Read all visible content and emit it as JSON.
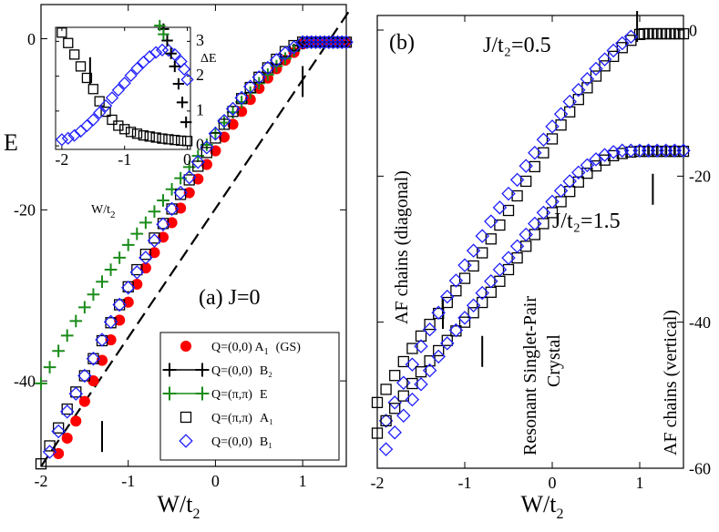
{
  "chart_data": [
    {
      "panel": "a",
      "type": "scatter",
      "annotation": "(a)  J=0",
      "xlabel": "W/t",
      "xlabel_sub": "2",
      "ylabel": "E",
      "xlim": [
        -2.0,
        1.5
      ],
      "ylim": [
        -50,
        4
      ],
      "xticks": [
        -2,
        -1,
        0,
        1
      ],
      "xtick_labels": [
        "-2",
        "-1",
        "0",
        "1"
      ],
      "yticks": [
        -40,
        -20,
        0
      ],
      "ytick_labels": [
        "-40",
        "-20",
        "0"
      ],
      "dashed_line": {
        "x": [
          -2.0,
          1.55
        ],
        "y": [
          -50.0,
          3.5
        ]
      },
      "markers": [
        {
          "x": -1.3,
          "y": -46.5
        },
        {
          "x": 1.0,
          "y": -5.0
        }
      ],
      "series": [
        {
          "name": "Q=(0,0) A1 (GS)",
          "legend_label": "Q=(0,0) A",
          "legend_sub": "1",
          "legend_suffix": "(GS)",
          "marker": "dot",
          "color": "#ff0000",
          "x": [
            -1.8,
            -1.7,
            -1.6,
            -1.5,
            -1.4,
            -1.3,
            -1.2,
            -1.1,
            -1.0,
            -0.9,
            -0.8,
            -0.7,
            -0.6,
            -0.5,
            -0.4,
            -0.3,
            -0.2,
            -0.1,
            0.0,
            0.1,
            0.2,
            0.3,
            0.4,
            0.5,
            0.6,
            0.7,
            0.8,
            0.9,
            1.0,
            1.1,
            1.2,
            1.3,
            1.4,
            1.5
          ],
          "y": [
            -48.5,
            -46.7,
            -44.7,
            -42.4,
            -40.0,
            -37.6,
            -35.2,
            -32.9,
            -30.8,
            -28.7,
            -26.8,
            -25.0,
            -23.2,
            -21.5,
            -19.8,
            -18.0,
            -16.4,
            -14.7,
            -13.1,
            -11.5,
            -10.0,
            -8.5,
            -7.1,
            -5.8,
            -4.6,
            -3.5,
            -2.5,
            -1.6,
            -0.6,
            -0.4,
            -0.4,
            -0.4,
            -0.4,
            -0.4
          ]
        },
        {
          "name": "Q=(0,0) B2",
          "legend_label": "Q=(0,0)",
          "legend_sub": "",
          "legend_suffix": "B₂",
          "marker": "plus",
          "color": "#000000",
          "x": [
            0.9,
            0.95,
            1.0,
            1.05,
            1.1,
            1.15,
            1.2,
            1.25,
            1.3,
            1.35,
            1.4,
            1.45,
            1.5
          ],
          "y": [
            -1.3,
            -0.8,
            -0.5,
            -0.4,
            -0.4,
            -0.4,
            -0.4,
            -0.4,
            -0.4,
            -0.4,
            -0.4,
            -0.4,
            -0.4
          ]
        },
        {
          "name": "Q=(π,π) E",
          "legend_label": "Q=(π,π)",
          "legend_sub": "",
          "legend_suffix": "E",
          "marker": "plus",
          "color": "#1a8c1a",
          "x": [
            -2.0,
            -1.9,
            -1.8,
            -1.7,
            -1.6,
            -1.5,
            -1.4,
            -1.3,
            -1.2,
            -1.1,
            -1.0,
            -0.9,
            -0.8,
            -0.7,
            -0.6,
            -0.5,
            -0.4,
            -0.3,
            -0.2,
            -0.1,
            0.0,
            0.1,
            0.2,
            0.3,
            0.4,
            0.5,
            0.6,
            0.7,
            0.8,
            0.9
          ],
          "y": [
            -40.3,
            -38.4,
            -36.5,
            -34.7,
            -33.0,
            -31.4,
            -29.9,
            -28.4,
            -27.0,
            -25.6,
            -24.1,
            -22.8,
            -21.5,
            -20.2,
            -18.9,
            -17.6,
            -16.3,
            -15.0,
            -13.7,
            -12.4,
            -11.0,
            -9.8,
            -8.6,
            -7.4,
            -6.3,
            -5.2,
            -4.2,
            -3.2,
            -2.3,
            -1.4
          ]
        },
        {
          "name": "Q=(π,π) A1",
          "legend_label": "Q=(π,π)",
          "legend_sub": "",
          "legend_suffix": "A₁",
          "marker": "square",
          "color": "#000000",
          "x": [
            -2.0,
            -1.9,
            -1.8,
            -1.7,
            -1.6,
            -1.5,
            -1.4,
            -1.3,
            -1.2,
            -1.1,
            -1.0,
            -0.9,
            -0.8,
            -0.7,
            -0.6,
            -0.5,
            -0.4,
            -0.3,
            -0.2,
            -0.1,
            0.0,
            0.1,
            0.2,
            0.3,
            0.4,
            0.5,
            0.6,
            0.7,
            0.8,
            0.9,
            1.0,
            1.05,
            1.1,
            1.15,
            1.2,
            1.25,
            1.3,
            1.35,
            1.4,
            1.45,
            1.5
          ],
          "y": [
            -49.7,
            -47.6,
            -45.5,
            -43.3,
            -41.3,
            -39.4,
            -37.4,
            -35.3,
            -33.2,
            -31.1,
            -29.0,
            -27.0,
            -25.2,
            -23.3,
            -21.6,
            -19.9,
            -18.2,
            -16.5,
            -14.9,
            -13.3,
            -11.6,
            -10.0,
            -8.5,
            -7.0,
            -5.7,
            -4.5,
            -3.4,
            -2.4,
            -1.5,
            -0.8,
            -0.4,
            -0.4,
            -0.4,
            -0.4,
            -0.4,
            -0.4,
            -0.4,
            -0.4,
            -0.4,
            -0.4,
            -0.4
          ]
        },
        {
          "name": "Q=(0,0) B1",
          "legend_label": "Q=(0,0)",
          "legend_sub": "",
          "legend_suffix": "B₁",
          "marker": "diamond",
          "color": "#1f1fff",
          "x": [
            -1.9,
            -1.8,
            -1.7,
            -1.6,
            -1.5,
            -1.4,
            -1.3,
            -1.2,
            -1.1,
            -1.0,
            -0.9,
            -0.8,
            -0.7,
            -0.6,
            -0.5,
            -0.4,
            -0.3,
            -0.2,
            -0.1,
            0.0,
            0.1,
            0.2,
            0.3,
            0.4,
            0.5,
            0.6,
            0.7,
            0.8,
            0.9,
            1.0,
            1.05,
            1.1,
            1.15,
            1.2,
            1.25,
            1.3,
            1.35,
            1.4,
            1.45,
            1.5
          ],
          "y": [
            -48.3,
            -45.9,
            -43.6,
            -41.5,
            -39.4,
            -37.4,
            -35.2,
            -33.1,
            -31.1,
            -29.1,
            -27.3,
            -25.6,
            -23.6,
            -21.7,
            -19.9,
            -18.0,
            -16.2,
            -14.4,
            -12.7,
            -11.1,
            -9.6,
            -8.2,
            -6.9,
            -5.6,
            -4.5,
            -3.4,
            -2.5,
            -1.7,
            -1.0,
            -0.4,
            -0.4,
            -0.4,
            -0.4,
            -0.4,
            -0.4,
            -0.4,
            -0.4,
            -0.4,
            -0.4,
            -0.4
          ]
        }
      ]
    },
    {
      "panel": "a-inset",
      "type": "scatter",
      "xlabel": "W/t",
      "xlabel_sub": "2",
      "ylabel": "ΔE",
      "xlim": [
        -2.1,
        0.05
      ],
      "ylim": [
        -0.1,
        3.4
      ],
      "xticks": [
        -2,
        -1,
        0
      ],
      "xtick_labels": [
        "-2",
        "-1",
        "0"
      ],
      "yticks": [
        0,
        1,
        2,
        3
      ],
      "ytick_labels": [
        "0",
        "1",
        "2",
        "3"
      ],
      "markers": [
        {
          "x": -1.55,
          "y": 2.15
        }
      ],
      "series": [
        {
          "name": "Q=(π,π) A1",
          "marker": "square",
          "color": "#000000",
          "x": [
            -2.0,
            -1.9,
            -1.8,
            -1.7,
            -1.6,
            -1.5,
            -1.4,
            -1.3,
            -1.2,
            -1.1,
            -1.0,
            -0.9,
            -0.8,
            -0.7,
            -0.6,
            -0.5,
            -0.4,
            -0.3,
            -0.2,
            -0.1,
            0.0
          ],
          "y": [
            3.25,
            2.95,
            2.62,
            2.28,
            1.95,
            1.63,
            1.28,
            0.98,
            0.75,
            0.58,
            0.48,
            0.4,
            0.35,
            0.3,
            0.27,
            0.24,
            0.21,
            0.19,
            0.17,
            0.15,
            0.14
          ]
        },
        {
          "name": "Q=(0,0) B1",
          "marker": "diamond",
          "color": "#1f1fff",
          "x": [
            -2.0,
            -1.9,
            -1.8,
            -1.7,
            -1.6,
            -1.5,
            -1.4,
            -1.3,
            -1.2,
            -1.1,
            -1.0,
            -0.9,
            -0.8,
            -0.7,
            -0.6,
            -0.5,
            -0.4,
            -0.3,
            -0.2,
            -0.1,
            0.0,
            -0.05
          ],
          "y": [
            0.18,
            0.22,
            0.3,
            0.42,
            0.58,
            0.75,
            0.95,
            1.15,
            1.38,
            1.6,
            1.8,
            2.02,
            2.22,
            2.4,
            2.56,
            2.68,
            2.75,
            2.74,
            2.62,
            2.42,
            1.9,
            2.2
          ]
        },
        {
          "name": "Q=(0,0) B2",
          "marker": "plus",
          "color": "#000000",
          "x": [
            -0.38,
            -0.32,
            -0.26,
            -0.2,
            -0.14,
            -0.08,
            -0.02
          ],
          "y": [
            3.35,
            3.02,
            2.65,
            2.28,
            1.78,
            1.25,
            0.68
          ]
        },
        {
          "name": "Q=(π,π) E",
          "marker": "plus",
          "color": "#1a8c1a",
          "x": [
            -0.44,
            -0.38
          ],
          "y": [
            3.45,
            3.2
          ]
        }
      ]
    },
    {
      "panel": "b",
      "type": "scatter",
      "annotations": [
        "(b)",
        "J/t₂=0.5",
        "J/t₂=1.5",
        "AF chains (diagonal)",
        "Resonant Singlet-Pair",
        "Crystal",
        "AF chains (vertical)"
      ],
      "xlabel": "W/t",
      "xlabel_sub": "2",
      "xlim": [
        -2.0,
        1.5
      ],
      "ylim": [
        -60,
        2
      ],
      "xticks": [
        -2,
        -1,
        0,
        1
      ],
      "xtick_labels": [
        "-2",
        "-1",
        "0",
        "1"
      ],
      "yticks": [
        -60,
        -40,
        -20,
        0
      ],
      "ytick_labels": [
        "-60",
        "-40",
        "-20",
        "0"
      ],
      "markers": [
        {
          "x": 0.97,
          "y": 0.5
        },
        {
          "x": 1.15,
          "y": -21.8
        },
        {
          "x": -1.25,
          "y": -38.8
        },
        {
          "x": -0.8,
          "y": -44.0
        }
      ],
      "series": [
        {
          "name": "J/t2=0.5 Q=(π,π) A1",
          "marker": "square",
          "color": "#000000",
          "x": [
            -2.0,
            -1.9,
            -1.8,
            -1.7,
            -1.6,
            -1.5,
            -1.4,
            -1.3,
            -1.2,
            -1.1,
            -1.0,
            -0.9,
            -0.8,
            -0.7,
            -0.6,
            -0.5,
            -0.4,
            -0.3,
            -0.2,
            -0.1,
            0.0,
            0.1,
            0.2,
            0.3,
            0.4,
            0.5,
            0.6,
            0.7,
            0.8,
            0.9,
            1.0,
            1.05,
            1.1,
            1.15,
            1.2,
            1.25,
            1.3,
            1.35,
            1.4,
            1.45,
            1.5
          ],
          "y": [
            -51.0,
            -49.2,
            -47.3,
            -45.4,
            -43.6,
            -41.9,
            -40.3,
            -38.8,
            -37.3,
            -35.7,
            -34.0,
            -32.3,
            -30.5,
            -28.6,
            -26.7,
            -24.7,
            -22.7,
            -20.7,
            -18.7,
            -16.8,
            -14.9,
            -13.0,
            -11.2,
            -9.5,
            -7.9,
            -6.3,
            -4.9,
            -3.6,
            -2.4,
            -1.4,
            -0.6,
            -0.5,
            -0.5,
            -0.5,
            -0.5,
            -0.5,
            -0.5,
            -0.5,
            -0.5,
            -0.5,
            -0.5
          ]
        },
        {
          "name": "J/t2=0.5 Q=(0,0) B1",
          "marker": "diamond",
          "color": "#1f1fff",
          "x": [
            -1.9,
            -1.8,
            -1.7,
            -1.6,
            -1.5,
            -1.4,
            -1.3,
            -1.2,
            -1.1,
            -1.0,
            -0.9,
            -0.8,
            -0.7,
            -0.6,
            -0.5,
            -0.4,
            -0.3,
            -0.2,
            -0.1,
            0.0,
            0.1,
            0.2,
            0.3,
            0.4,
            0.5,
            0.6,
            0.7,
            0.8,
            0.9
          ],
          "y": [
            -53.5,
            -51.0,
            -48.3,
            -45.8,
            -43.3,
            -41.0,
            -38.7,
            -36.5,
            -34.3,
            -32.2,
            -30.2,
            -28.2,
            -26.2,
            -24.3,
            -22.4,
            -20.5,
            -18.6,
            -16.8,
            -15.0,
            -13.2,
            -11.5,
            -9.8,
            -8.2,
            -6.7,
            -5.3,
            -4.0,
            -2.8,
            -1.8,
            -0.9
          ]
        },
        {
          "name": "J/t2=1.5 Q=(π,π) A1",
          "marker": "square",
          "color": "#000000",
          "x": [
            -2.0,
            -1.9,
            -1.8,
            -1.7,
            -1.6,
            -1.5,
            -1.4,
            -1.3,
            -1.2,
            -1.1,
            -1.0,
            -0.9,
            -0.8,
            -0.7,
            -0.6,
            -0.5,
            -0.4,
            -0.3,
            -0.2,
            -0.1,
            0.0,
            0.1,
            0.2,
            0.3,
            0.4,
            0.5,
            0.6,
            0.7,
            0.8,
            0.9,
            1.0,
            1.05,
            1.1,
            1.15,
            1.2,
            1.25,
            1.3,
            1.35,
            1.4,
            1.45,
            1.5
          ],
          "y": [
            -55.2,
            -53.5,
            -51.8,
            -50.1,
            -48.4,
            -46.8,
            -45.3,
            -43.9,
            -42.5,
            -41.2,
            -40.0,
            -38.7,
            -37.3,
            -35.9,
            -34.4,
            -32.8,
            -31.2,
            -29.6,
            -28.0,
            -26.5,
            -25.0,
            -23.5,
            -22.1,
            -20.8,
            -19.6,
            -18.6,
            -17.8,
            -17.2,
            -16.9,
            -16.7,
            -16.6,
            -16.6,
            -16.6,
            -16.6,
            -16.6,
            -16.6,
            -16.6,
            -16.6,
            -16.6,
            -16.6,
            -16.6
          ]
        },
        {
          "name": "J/t2=1.5 Q=(0,0) B1",
          "marker": "diamond",
          "color": "#1f1fff",
          "x": [
            -1.9,
            -1.8,
            -1.7,
            -1.6,
            -1.5,
            -1.4,
            -1.3,
            -1.2,
            -1.1,
            -1.0,
            -0.9,
            -0.8,
            -0.7,
            -0.6,
            -0.5,
            -0.4,
            -0.3,
            -0.2,
            -0.1,
            0.0,
            0.1,
            0.2,
            0.3,
            0.4,
            0.5,
            0.6,
            0.7,
            0.8,
            0.9,
            1.0,
            1.1,
            1.2,
            1.3,
            1.4,
            1.5
          ],
          "y": [
            -57.4,
            -55.1,
            -52.8,
            -50.6,
            -48.5,
            -46.6,
            -44.7,
            -42.9,
            -41.1,
            -39.4,
            -37.7,
            -36.0,
            -34.4,
            -32.8,
            -31.2,
            -29.6,
            -28.0,
            -26.5,
            -25.0,
            -23.5,
            -22.0,
            -20.7,
            -19.5,
            -18.5,
            -17.7,
            -17.1,
            -16.7,
            -16.5,
            -16.5,
            -16.5,
            -16.5,
            -16.5,
            -16.5,
            -16.5,
            -16.5
          ]
        }
      ]
    }
  ]
}
